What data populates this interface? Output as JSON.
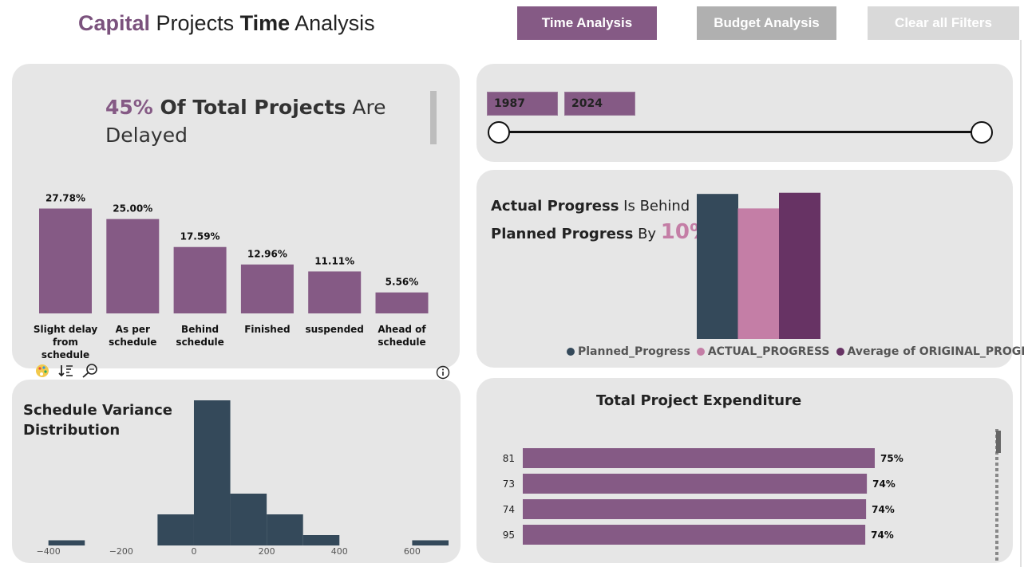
{
  "header": {
    "title_part1": "Capital",
    "title_part2": " Projects ",
    "title_part3": "Time",
    "title_part4": " Analysis",
    "buttons": {
      "time": "Time Analysis",
      "budget": "Budget Analysis",
      "clear": "Clear all Filters"
    }
  },
  "colors": {
    "accent": "#855a85",
    "dark": "#34495a",
    "pink": "#c47ea6",
    "plum": "#673364",
    "time_btn": "#855a85",
    "budget_btn": "#b0b0b0",
    "clear_btn": "#d9d9d9"
  },
  "delayed_card": {
    "pct": "45%",
    "of": " Of ",
    "total_projects": " Total Projects",
    "are": " Are",
    "delayed": "Delayed"
  },
  "status_chart": {
    "chart_data": {
      "type": "bar",
      "categories": [
        "Slight delay from schedule",
        "As per schedule",
        "Behind schedule",
        "Finished",
        "suspended",
        "Ahead of schedule"
      ],
      "values": [
        27.78,
        25.0,
        17.59,
        12.96,
        11.11,
        5.56
      ],
      "labels": [
        "27.78%",
        "25.00%",
        "17.59%",
        "12.96%",
        "11.11%",
        "5.56%"
      ],
      "ylim": [
        0,
        30
      ]
    }
  },
  "year_slider": {
    "start": "1987",
    "end": "2024"
  },
  "progress_card": {
    "line1_bold": "Actual Progress",
    "line1_rest": " Is Behind",
    "line2_bold": "Planned Progress",
    "line2_rest": " By ",
    "pct": "10%"
  },
  "progress_chart": {
    "chart_data": {
      "type": "bar",
      "series": [
        {
          "name": "Planned_Progress",
          "value": 100
        },
        {
          "name": "ACTUAL_PROGRESS",
          "value": 90
        },
        {
          "name": "Average of ORIGINAL_PROGRESS",
          "value": 100.8
        }
      ],
      "ylim": [
        0,
        110
      ]
    }
  },
  "variance_card": {
    "title_line1": "Schedule Variance",
    "title_line2": "Distribution",
    "chart_data": {
      "type": "bar",
      "bins": [
        {
          "x0": -400,
          "x1": -300,
          "count": 1
        },
        {
          "x0": -100,
          "x1": 0,
          "count": 6
        },
        {
          "x0": 0,
          "x1": 100,
          "count": 28
        },
        {
          "x0": 100,
          "x1": 200,
          "count": 10
        },
        {
          "x0": 200,
          "x1": 300,
          "count": 6
        },
        {
          "x0": 300,
          "x1": 400,
          "count": 2
        },
        {
          "x0": 600,
          "x1": 700,
          "count": 1
        }
      ],
      "xlim": [
        -430,
        700
      ],
      "ylim": [
        0,
        28
      ],
      "ticks": [
        {
          "v": -400,
          "label": "−400"
        },
        {
          "v": -200,
          "label": "−200"
        },
        {
          "v": 0,
          "label": "0"
        },
        {
          "v": 200,
          "label": "200"
        },
        {
          "v": 400,
          "label": "400"
        },
        {
          "v": 600,
          "label": "600"
        }
      ]
    }
  },
  "expenditure_card": {
    "title": "Total Project Expenditure",
    "chart_data": {
      "type": "bar",
      "categories": [
        "81",
        "73",
        "74",
        "95"
      ],
      "values": [
        75,
        74,
        74,
        74
      ],
      "labels": [
        "75%",
        "74%",
        "74%",
        "74%"
      ],
      "xlim": [
        0,
        75
      ]
    }
  },
  "toolbar_icons": [
    "palette-icon",
    "sort-icon",
    "search-icon",
    "info-icon"
  ]
}
